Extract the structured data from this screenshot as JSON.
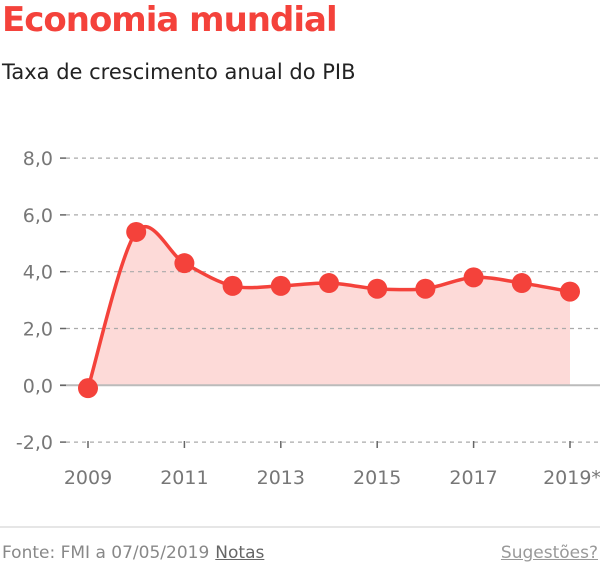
{
  "header": {
    "title": "Economia mundial",
    "subtitle": "Taxa de crescimento anual do PIB"
  },
  "footer": {
    "source": "Fonte: FMI a 07/05/2019",
    "notes_link": "Notas",
    "suggestions_link": "Sugestões?"
  },
  "colors": {
    "accent": "#f4423b",
    "fill": "#fddad8",
    "grid": "#aaaaaa"
  },
  "chart_data": {
    "type": "area",
    "title": "Economia mundial",
    "subtitle": "Taxa de crescimento anual do PIB",
    "xlabel": "",
    "ylabel": "",
    "x": [
      2009,
      2010,
      2011,
      2012,
      2013,
      2014,
      2015,
      2016,
      2017,
      2018,
      2019
    ],
    "values": [
      -0.1,
      5.4,
      4.3,
      3.5,
      3.5,
      3.6,
      3.4,
      3.4,
      3.8,
      3.6,
      3.3
    ],
    "ylim": [
      -2,
      8
    ],
    "yticks": [
      -2,
      0,
      2,
      4,
      6,
      8
    ],
    "ytick_labels": [
      "-2,0",
      "0,0",
      "2,0",
      "4,0",
      "6,0",
      "8,0"
    ],
    "xtick_labels": [
      "2009",
      "2011",
      "2013",
      "2015",
      "2017",
      "2019*"
    ],
    "xtick_values": [
      2009,
      2011,
      2013,
      2015,
      2017,
      2019
    ],
    "grid": true
  }
}
